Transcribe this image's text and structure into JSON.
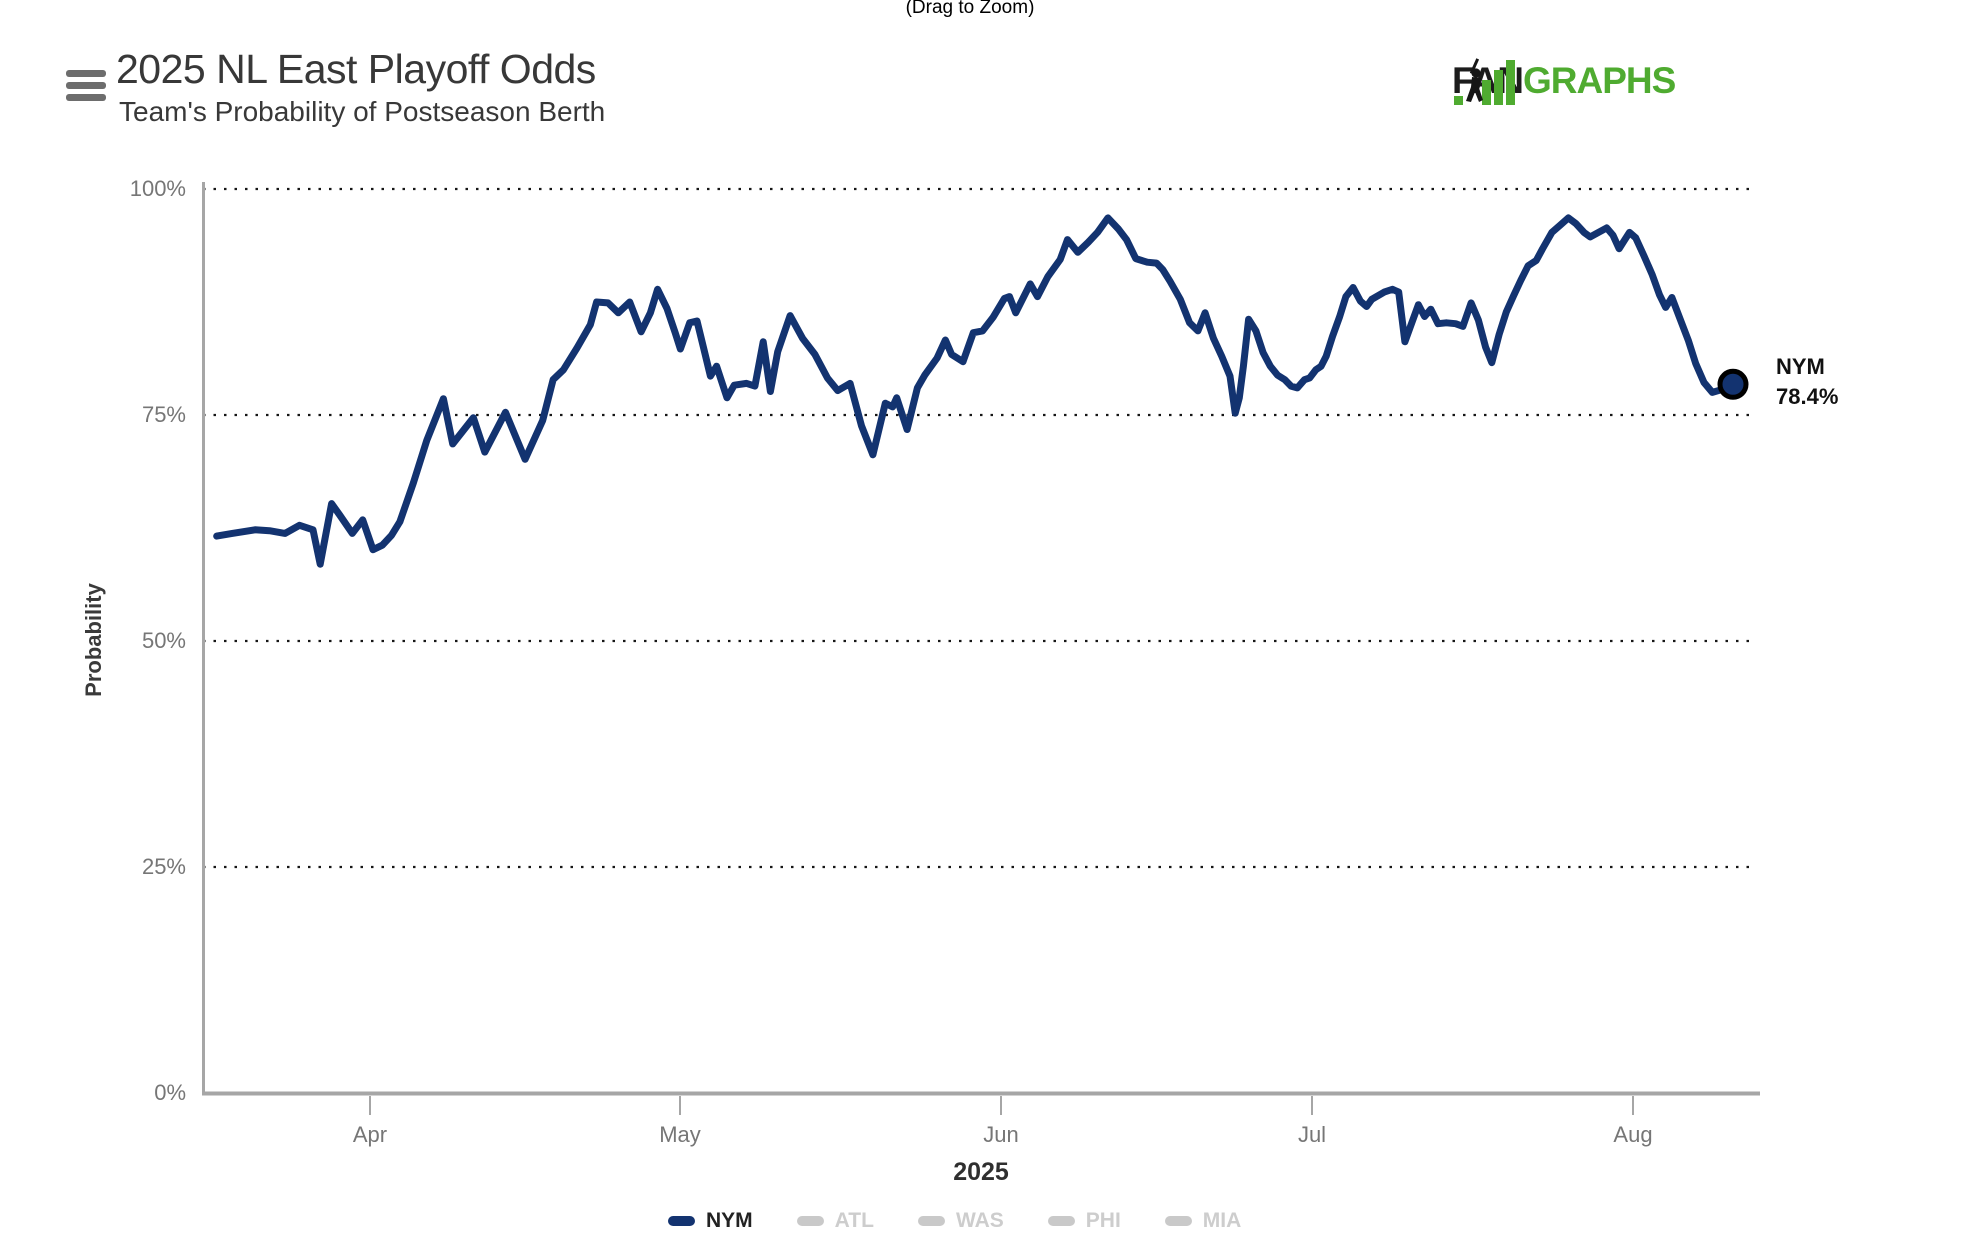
{
  "page": {
    "hint": "(Drag to Zoom)"
  },
  "header": {
    "title": "2025 NL East Playoff Odds",
    "subtitle": "Team's Probability of Postseason Berth",
    "menu_icon": "hamburger-icon",
    "logo": {
      "fan": "FAN",
      "graphs": "GRAPHS",
      "green": "#4fab30",
      "black": "#1c1c1c"
    }
  },
  "chart_data": {
    "type": "line",
    "title": "2025 NL East Playoff Odds",
    "subtitle": "Team's Probability of Postseason Berth",
    "xlabel": "2025",
    "ylabel": "Probability",
    "ylim": [
      0,
      100
    ],
    "y_ticks": [
      "100%",
      "75%",
      "50%",
      "25%",
      "0%"
    ],
    "x_ticks": [
      "Apr",
      "May",
      "Jun",
      "Jul",
      "Aug"
    ],
    "grid": "horizontal dotted at 25% steps",
    "legend_position": "bottom",
    "x_unit": "days since 2025-03-18",
    "x_tick_days": [
      14,
      44,
      75,
      105,
      136
    ],
    "series": [
      {
        "name": "NYM",
        "color": "#133370",
        "active": true,
        "end_label": {
          "team": "NYM",
          "value": "78.4%"
        },
        "end_value": 78.4,
        "points": [
          [
            -0.8,
            61.6
          ],
          [
            0.7,
            61.9
          ],
          [
            2.9,
            62.3
          ],
          [
            4.3,
            62.2
          ],
          [
            5.8,
            61.9
          ],
          [
            7.2,
            62.8
          ],
          [
            8.5,
            62.3
          ],
          [
            9.2,
            58.5
          ],
          [
            10.3,
            65.2
          ],
          [
            11.1,
            63.9
          ],
          [
            12.3,
            61.9
          ],
          [
            13.3,
            63.4
          ],
          [
            14.3,
            60.1
          ],
          [
            15.2,
            60.6
          ],
          [
            16.1,
            61.7
          ],
          [
            16.9,
            63.2
          ],
          [
            18.2,
            67.5
          ],
          [
            19.5,
            72.2
          ],
          [
            21.1,
            76.8
          ],
          [
            22.0,
            71.8
          ],
          [
            24.0,
            74.7
          ],
          [
            25.1,
            70.9
          ],
          [
            27.1,
            75.3
          ],
          [
            29.0,
            70.1
          ],
          [
            30.7,
            74.4
          ],
          [
            31.7,
            78.9
          ],
          [
            32.7,
            80.0
          ],
          [
            34.0,
            82.4
          ],
          [
            35.3,
            85.0
          ],
          [
            35.9,
            87.5
          ],
          [
            37.0,
            87.4
          ],
          [
            38.0,
            86.3
          ],
          [
            39.1,
            87.5
          ],
          [
            40.2,
            84.2
          ],
          [
            41.1,
            86.3
          ],
          [
            41.8,
            88.9
          ],
          [
            42.7,
            86.8
          ],
          [
            43.5,
            84.1
          ],
          [
            44.0,
            82.3
          ],
          [
            44.9,
            85.2
          ],
          [
            45.6,
            85.4
          ],
          [
            46.2,
            82.6
          ],
          [
            46.9,
            79.3
          ],
          [
            47.5,
            80.4
          ],
          [
            48.5,
            76.9
          ],
          [
            49.2,
            78.3
          ],
          [
            50.4,
            78.5
          ],
          [
            51.2,
            78.2
          ],
          [
            52.0,
            83.1
          ],
          [
            52.7,
            77.6
          ],
          [
            53.4,
            82.0
          ],
          [
            54.6,
            86.0
          ],
          [
            55.8,
            83.5
          ],
          [
            57.0,
            81.7
          ],
          [
            58.2,
            79.1
          ],
          [
            59.2,
            77.7
          ],
          [
            60.4,
            78.5
          ],
          [
            61.5,
            73.8
          ],
          [
            62.6,
            70.6
          ],
          [
            63.8,
            76.3
          ],
          [
            64.5,
            75.9
          ],
          [
            64.9,
            76.9
          ],
          [
            65.9,
            73.4
          ],
          [
            66.9,
            78.0
          ],
          [
            67.6,
            79.4
          ],
          [
            68.8,
            81.3
          ],
          [
            69.6,
            83.3
          ],
          [
            70.2,
            81.7
          ],
          [
            71.3,
            80.9
          ],
          [
            72.3,
            84.1
          ],
          [
            73.2,
            84.3
          ],
          [
            74.2,
            85.8
          ],
          [
            75.3,
            87.9
          ],
          [
            75.8,
            88.1
          ],
          [
            76.4,
            86.3
          ],
          [
            77.8,
            89.5
          ],
          [
            78.5,
            88.1
          ],
          [
            79.5,
            90.3
          ],
          [
            80.7,
            92.2
          ],
          [
            81.4,
            94.4
          ],
          [
            82.4,
            93.0
          ],
          [
            83.4,
            94.1
          ],
          [
            84.3,
            95.2
          ],
          [
            85.3,
            96.8
          ],
          [
            86.3,
            95.6
          ],
          [
            87.1,
            94.4
          ],
          [
            88.0,
            92.3
          ],
          [
            89.1,
            91.9
          ],
          [
            90.0,
            91.8
          ],
          [
            90.6,
            91.1
          ],
          [
            91.3,
            89.8
          ],
          [
            92.3,
            87.8
          ],
          [
            93.2,
            85.2
          ],
          [
            94.0,
            84.3
          ],
          [
            94.7,
            86.3
          ],
          [
            95.5,
            83.5
          ],
          [
            96.3,
            81.5
          ],
          [
            97.1,
            79.3
          ],
          [
            97.6,
            75.2
          ],
          [
            98.0,
            76.9
          ],
          [
            98.4,
            80.4
          ],
          [
            98.9,
            85.6
          ],
          [
            99.6,
            84.3
          ],
          [
            100.3,
            81.9
          ],
          [
            101.0,
            80.4
          ],
          [
            101.7,
            79.4
          ],
          [
            102.4,
            78.9
          ],
          [
            103.0,
            78.2
          ],
          [
            103.6,
            78.0
          ],
          [
            104.3,
            78.9
          ],
          [
            104.8,
            79.1
          ],
          [
            105.4,
            80.0
          ],
          [
            105.9,
            80.4
          ],
          [
            106.4,
            81.5
          ],
          [
            107.0,
            83.7
          ],
          [
            107.7,
            85.9
          ],
          [
            108.3,
            88.1
          ],
          [
            109.0,
            89.1
          ],
          [
            109.7,
            87.6
          ],
          [
            110.3,
            87.0
          ],
          [
            110.8,
            87.8
          ],
          [
            112.0,
            88.6
          ],
          [
            112.8,
            88.9
          ],
          [
            113.4,
            88.6
          ],
          [
            114.0,
            83.1
          ],
          [
            114.7,
            85.3
          ],
          [
            115.3,
            87.2
          ],
          [
            115.9,
            85.9
          ],
          [
            116.5,
            86.7
          ],
          [
            117.2,
            85.1
          ],
          [
            118.0,
            85.2
          ],
          [
            118.9,
            85.1
          ],
          [
            119.6,
            84.8
          ],
          [
            120.4,
            87.4
          ],
          [
            121.1,
            85.5
          ],
          [
            121.8,
            82.5
          ],
          [
            122.4,
            80.8
          ],
          [
            123.1,
            83.9
          ],
          [
            123.8,
            86.4
          ],
          [
            124.5,
            88.2
          ],
          [
            125.2,
            89.9
          ],
          [
            125.9,
            91.5
          ],
          [
            126.7,
            92.1
          ],
          [
            127.3,
            93.4
          ],
          [
            128.2,
            95.2
          ],
          [
            129.0,
            96.0
          ],
          [
            129.8,
            96.8
          ],
          [
            130.5,
            96.2
          ],
          [
            131.3,
            95.2
          ],
          [
            131.9,
            94.7
          ],
          [
            132.7,
            95.2
          ],
          [
            133.5,
            95.7
          ],
          [
            134.1,
            94.9
          ],
          [
            134.7,
            93.4
          ],
          [
            135.2,
            94.3
          ],
          [
            135.7,
            95.2
          ],
          [
            136.3,
            94.6
          ],
          [
            137.1,
            92.6
          ],
          [
            137.9,
            90.5
          ],
          [
            138.6,
            88.3
          ],
          [
            139.2,
            86.9
          ],
          [
            139.8,
            88.0
          ],
          [
            140.6,
            85.6
          ],
          [
            141.4,
            83.2
          ],
          [
            142.1,
            80.7
          ],
          [
            142.9,
            78.6
          ],
          [
            143.7,
            77.5
          ],
          [
            144.6,
            77.8
          ],
          [
            145.7,
            78.4
          ]
        ]
      },
      {
        "name": "ATL",
        "color": "#c9c9c9",
        "active": false
      },
      {
        "name": "WAS",
        "color": "#c9c9c9",
        "active": false
      },
      {
        "name": "PHI",
        "color": "#c9c9c9",
        "active": false
      },
      {
        "name": "MIA",
        "color": "#c9c9c9",
        "active": false
      }
    ]
  },
  "colors": {
    "nym_line": "#133370",
    "marker_ring": "#000000",
    "axis_gray": "#a6a6a6",
    "tick_text": "#767676",
    "inactive_legend": "#c9c9c9",
    "logo_green": "#4fab30"
  }
}
